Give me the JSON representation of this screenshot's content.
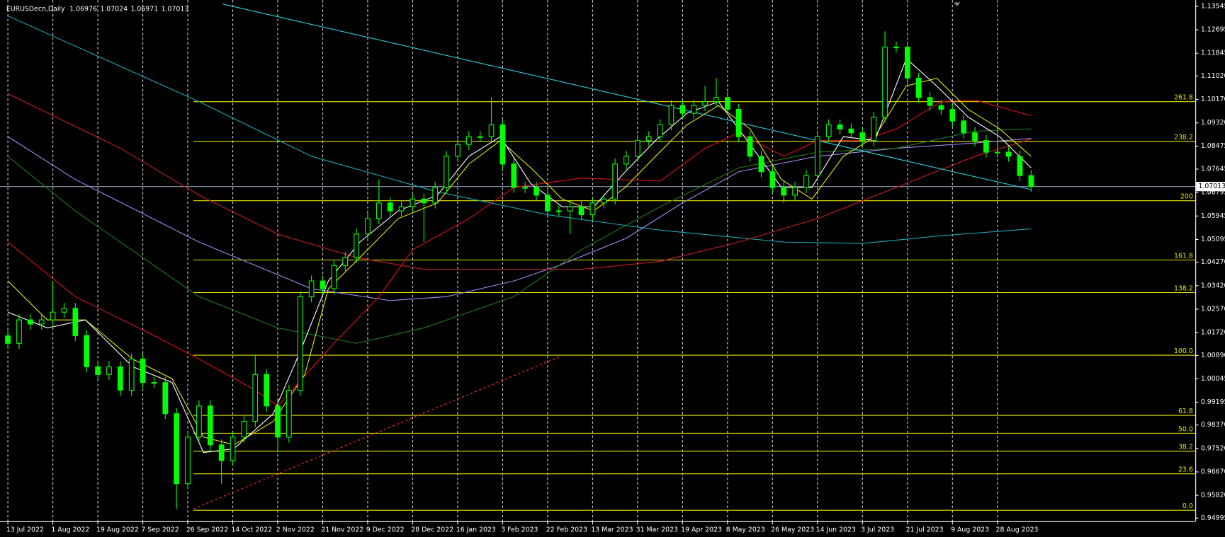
{
  "chart_data": {
    "type": "candlestick",
    "header": {
      "symbol": "EURUSDecn,Daily",
      "ohlc": [
        1.06976,
        1.07024,
        1.06971,
        1.07013
      ]
    },
    "bid": 1.07013,
    "bid_color": "#8a9bb0",
    "candle_color": "#00ff00",
    "grid": true,
    "xlim": [
      -0.7,
      105.6
    ],
    "ylim": [
      0.9488,
      1.1377
    ],
    "yticks": [
      1.13545,
      1.12695,
      1.11845,
      {
        "value": 1.1102,
        "label": "1.11020"
      },
      {
        "value": 1.1017,
        "label": "1.10170"
      },
      {
        "value": 1.0932,
        "label": "1.09320"
      },
      1.08475,
      1.07645,
      1.06795,
      1.05945,
      1.05095,
      {
        "value": 1.0427,
        "label": "1.04270"
      },
      {
        "value": 1.0342,
        "label": "1.03420"
      },
      {
        "value": 1.0257,
        "label": "1.02570"
      },
      {
        "value": 1.0172,
        "label": "1.01720"
      },
      {
        "value": 1.0089,
        "label": "1.00890"
      },
      1.00045,
      0.99195,
      {
        "value": 0.9837,
        "label": "0.98370"
      },
      {
        "value": 0.9752,
        "label": "0.97520"
      },
      {
        "value": 0.9667,
        "label": "0.96670"
      },
      {
        "value": 0.9582,
        "label": "0.95820"
      },
      0.94995
    ],
    "xticks": [
      {
        "value": 0,
        "label": "13 Jul 2022"
      },
      {
        "value": 4,
        "label": "1 Aug 2022"
      },
      {
        "value": 8,
        "label": "19 Aug 2022"
      },
      {
        "value": 12,
        "label": "7 Sep 2022"
      },
      {
        "value": 16,
        "label": "26 Sep 2022"
      },
      {
        "value": 20,
        "label": "14 Oct 2022"
      },
      {
        "value": 24,
        "label": "2 Nov 2022"
      },
      {
        "value": 28,
        "label": "21 Nov 2022"
      },
      {
        "value": 32,
        "label": "9 Dec 2022"
      },
      {
        "value": 36,
        "label": "28 Dec 2022"
      },
      {
        "value": 40,
        "label": "16 Jan 2023"
      },
      {
        "value": 44,
        "label": "3 Feb 2023"
      },
      {
        "value": 48,
        "label": "22 Feb 2023"
      },
      {
        "value": 52,
        "label": "13 Mar 2023"
      },
      {
        "value": 56,
        "label": "31 Mar 2023"
      },
      {
        "value": 60,
        "label": "19 Apr 2023"
      },
      {
        "value": 64,
        "label": "8 May 2023"
      },
      {
        "value": 68,
        "label": "26 May 2023"
      },
      {
        "value": 72,
        "label": "14 Jun 2023"
      },
      {
        "value": 76,
        "label": "3 Jul 2023"
      },
      {
        "value": 80,
        "label": "21 Jul 2023"
      },
      {
        "value": 84,
        "label": "9 Aug 2023"
      },
      {
        "value": 88,
        "label": "28 Aug 2023"
      }
    ],
    "open": [
      1.016,
      1.0133,
      1.0218,
      1.0203,
      1.0218,
      1.0246,
      1.026,
      1.0161,
      1.0048,
      1.002,
      1.0048,
      0.9963,
      1.0076,
      0.9991,
      0.9991,
      0.9878,
      0.9624,
      0.9793,
      0.9906,
      0.9765,
      0.9708,
      0.9793,
      0.985,
      1.002,
      0.9906,
      0.9793,
      0.9963,
      1.0302,
      1.0359,
      1.0331,
      1.0415,
      1.0444,
      1.0529,
      1.0585,
      1.0642,
      1.0613,
      1.0628,
      1.0656,
      1.0642,
      1.0698,
      1.0811,
      1.0854,
      1.0882,
      1.0882,
      1.0925,
      1.0783,
      1.0698,
      1.0698,
      1.067,
      1.0613,
      1.0613,
      1.0628,
      1.0599,
      1.0642,
      1.0656,
      1.0783,
      1.0811,
      1.0868,
      1.0882,
      1.0925,
      1.0995,
      1.0967,
      1.0995,
      1.1009,
      1.1024,
      1.0981,
      1.0882,
      1.0811,
      1.0755,
      1.0698,
      1.067,
      1.0698,
      1.0741,
      1.0882,
      1.0925,
      1.091,
      1.0896,
      1.0868,
      1.0953,
      1.1207,
      1.1207,
      1.1094,
      1.1024,
      1.0995,
      1.0981,
      1.0939,
      1.0896,
      1.0868,
      1.0826,
      1.0826,
      1.0811,
      1.0741
    ],
    "high": [
      1.018,
      1.0238,
      1.0238,
      1.0238,
      1.0359,
      1.028,
      1.028,
      1.0181,
      1.0068,
      1.0068,
      1.0068,
      1.0096,
      1.0096,
      1.0011,
      1.0011,
      0.9898,
      0.9813,
      0.9926,
      0.9926,
      0.9785,
      0.9813,
      0.987,
      1.009,
      1.004,
      0.9926,
      0.9983,
      1.0322,
      1.0379,
      1.0379,
      1.0435,
      1.0464,
      1.0549,
      1.0605,
      1.0727,
      1.0662,
      1.0648,
      1.0676,
      1.0676,
      1.0718,
      1.0831,
      1.0874,
      1.0902,
      1.0902,
      1.1024,
      1.0945,
      1.0803,
      1.0718,
      1.0718,
      1.069,
      1.0633,
      1.0648,
      1.0648,
      1.0662,
      1.0676,
      1.0803,
      1.0831,
      1.0888,
      1.0902,
      1.0945,
      1.1015,
      1.1015,
      1.1015,
      1.1066,
      1.1094,
      1.1044,
      1.1001,
      1.0902,
      1.0831,
      1.0775,
      1.0718,
      1.0718,
      1.0761,
      1.0902,
      1.0945,
      1.0945,
      1.093,
      1.0916,
      1.0973,
      1.1264,
      1.1227,
      1.1227,
      1.1114,
      1.1044,
      1.1015,
      1.1001,
      1.0959,
      1.0916,
      1.0888,
      1.0925,
      1.0846,
      1.0831,
      1.0761
    ],
    "low": [
      1.0113,
      1.0113,
      1.0183,
      1.0183,
      1.0198,
      1.0226,
      1.0141,
      1.0028,
      1.0,
      1.0,
      0.9943,
      0.9943,
      0.9971,
      0.9971,
      0.9858,
      0.9533,
      0.9604,
      0.9773,
      0.9745,
      0.9624,
      0.9688,
      0.9773,
      0.983,
      0.9886,
      0.9737,
      0.9773,
      0.9943,
      1.0282,
      1.0311,
      1.0311,
      1.0395,
      1.0424,
      1.0509,
      1.0565,
      1.0593,
      1.0593,
      1.0608,
      1.05,
      1.0622,
      1.0678,
      1.0791,
      1.0834,
      1.0862,
      1.0862,
      1.0763,
      1.0678,
      1.0678,
      1.065,
      1.0593,
      1.0593,
      1.0529,
      1.0579,
      1.0579,
      1.0622,
      1.0636,
      1.0763,
      1.0791,
      1.0848,
      1.0862,
      1.0905,
      1.0947,
      1.0947,
      1.0975,
      1.0989,
      1.0961,
      1.0862,
      1.0791,
      1.0735,
      1.0678,
      1.0642,
      1.065,
      1.0678,
      1.0721,
      1.0862,
      1.089,
      1.0876,
      1.0848,
      1.0848,
      1.0933,
      1.1187,
      1.1074,
      1.1004,
      1.0975,
      1.0961,
      1.0919,
      1.0876,
      1.0848,
      1.0806,
      1.0806,
      1.0791,
      1.0721,
      1.0681
    ],
    "close": [
      1.0133,
      1.0218,
      1.0203,
      1.0218,
      1.0246,
      1.026,
      1.0161,
      1.0048,
      1.002,
      1.0048,
      0.9963,
      1.0076,
      0.9991,
      0.9991,
      0.9878,
      0.9624,
      0.9793,
      0.9906,
      0.9765,
      0.9708,
      0.9793,
      0.985,
      1.002,
      0.9906,
      0.9793,
      0.9963,
      1.0302,
      1.0359,
      1.0331,
      1.0415,
      1.0444,
      1.0529,
      1.0585,
      1.0642,
      1.0613,
      1.0628,
      1.0656,
      1.0642,
      1.0698,
      1.0811,
      1.0854,
      1.0882,
      1.0882,
      1.0925,
      1.0783,
      1.0698,
      1.0698,
      1.067,
      1.0613,
      1.0613,
      1.0628,
      1.0599,
      1.0642,
      1.0656,
      1.0783,
      1.0811,
      1.0868,
      1.0882,
      1.0925,
      1.0995,
      1.0967,
      1.0995,
      1.1009,
      1.1024,
      1.0981,
      1.0882,
      1.0811,
      1.0755,
      1.0698,
      1.067,
      1.0698,
      1.0741,
      1.0882,
      1.0925,
      1.091,
      1.0896,
      1.0868,
      1.0953,
      1.1207,
      1.1207,
      1.1094,
      1.1024,
      1.0995,
      1.0981,
      1.0939,
      1.0896,
      1.0868,
      1.0826,
      1.0826,
      1.0811,
      1.0741,
      1.0701
    ],
    "series": [
      {
        "color": "#1aa8b8",
        "x": [
          0,
          17,
          27,
          38,
          48,
          58,
          69,
          76,
          83,
          91
        ],
        "values": [
          1.132,
          1.1009,
          1.0811,
          1.0684,
          1.0599,
          1.0543,
          1.05,
          1.0495,
          1.0523,
          1.0548
        ]
      },
      {
        "color": "#9d8cf0",
        "x": [
          0,
          6,
          17,
          27,
          34,
          39,
          45,
          49,
          55,
          60,
          65,
          72,
          79,
          86,
          91
        ],
        "values": [
          1.0882,
          1.0727,
          1.05,
          1.0331,
          1.0288,
          1.0302,
          1.0359,
          1.0415,
          1.0514,
          1.0642,
          1.0755,
          1.0811,
          1.084,
          1.0859,
          1.0876
        ]
      },
      {
        "color": "#1f7a1f",
        "x": [
          0,
          6,
          17,
          24,
          31,
          37,
          45,
          51,
          58,
          65,
          72,
          79,
          86,
          91
        ],
        "values": [
          1.0811,
          1.0613,
          1.0302,
          1.0189,
          1.0133,
          1.0189,
          1.0302,
          1.0472,
          1.0628,
          1.0769,
          1.0826,
          1.084,
          1.0902,
          1.091
        ]
      },
      {
        "color": "#c81e1e",
        "x": [
          0,
          10,
          17,
          24,
          31,
          37,
          45,
          51,
          58,
          65,
          72,
          79,
          86,
          91
        ],
        "values": [
          1.1038,
          1.084,
          1.067,
          1.0529,
          1.0444,
          1.0401,
          1.0401,
          1.0401,
          1.043,
          1.05,
          1.0585,
          1.0698,
          1.0811,
          1.0874
        ]
      },
      {
        "color": "#e01010",
        "x": [
          0,
          6,
          13,
          17,
          22,
          24,
          29,
          33,
          36,
          41,
          45,
          51,
          58,
          62,
          65,
          69,
          72,
          76,
          79,
          83,
          86,
          91
        ],
        "values": [
          1.05,
          1.0302,
          1.0161,
          1.0076,
          0.9963,
          0.9906,
          1.0133,
          1.0302,
          1.0472,
          1.0585,
          1.0698,
          1.0732,
          1.0721,
          1.084,
          1.0896,
          1.0811,
          1.0868,
          1.0868,
          1.091,
          1.1009,
          1.1015,
          1.0958
        ]
      },
      {
        "color": "#e8e800",
        "x": [
          0,
          3.5,
          6.9,
          11.1,
          14.6,
          17.4,
          20.1,
          23.6,
          26.4,
          28.5,
          31.3,
          34.7,
          38.2,
          41,
          43.8,
          46.5,
          49.3,
          52.1,
          54.9,
          57.6,
          60.4,
          63.2,
          66,
          68.8,
          71.5,
          74.3,
          77.1,
          79.9,
          82.6,
          85.4,
          88.2,
          91
        ],
        "values": [
          1.0359,
          1.0218,
          1.0218,
          1.0076,
          1.0005,
          0.9793,
          0.9765,
          0.985,
          1.002,
          1.0331,
          1.0444,
          1.0585,
          1.0642,
          1.0783,
          1.0868,
          1.0769,
          1.0656,
          1.0613,
          1.0698,
          1.0811,
          1.0925,
          1.0995,
          1.091,
          1.0727,
          1.0656,
          1.0811,
          1.0882,
          1.1066,
          1.1094,
          1.0981,
          1.091,
          1.0811
        ]
      },
      {
        "color": "#ffffff",
        "x": [
          0,
          3.5,
          6.9,
          11.1,
          14.6,
          17.4,
          20.1,
          23.6,
          26,
          28.5,
          31.3,
          34.7,
          38.2,
          41,
          43.8,
          46.5,
          49.3,
          52.1,
          54.9,
          57.6,
          60.4,
          63.2,
          66,
          68.8,
          71.5,
          74.3,
          77.1,
          79.9,
          82.6,
          85.4,
          88.2,
          91
        ],
        "values": [
          1.0246,
          1.0189,
          1.0218,
          1.0048,
          0.9991,
          0.9737,
          0.9751,
          0.9878,
          1.0104,
          1.0359,
          1.05,
          1.0613,
          1.067,
          1.0811,
          1.0882,
          1.0712,
          1.0628,
          1.0628,
          1.0755,
          1.0868,
          1.0967,
          1.1009,
          1.0854,
          1.0698,
          1.0698,
          1.0882,
          1.0868,
          1.1165,
          1.1066,
          1.0953,
          1.0882,
          1.0769
        ]
      },
      {
        "color": "#2ad0e0",
        "x": [
          19.1,
          91
        ],
        "values": [
          1.1363,
          1.069
        ]
      },
      {
        "color": "#ff3030",
        "dashed": true,
        "x": [
          16.5,
          49.2
        ],
        "values": [
          0.9533,
          1.0087
        ]
      }
    ],
    "fib_color": "#e6e600",
    "fib_start": 16.5,
    "fib_levels": [
      {
        "label": "261.8",
        "value": 1.1009
      },
      {
        "label": "238.2",
        "value": 1.0865
      },
      {
        "label": "200",
        "value": 1.065
      },
      {
        "label": "161.8",
        "value": 1.0435
      },
      {
        "label": "138.2",
        "value": 1.0317
      },
      {
        "label": "100.0",
        "value": 1.009
      },
      {
        "label": "61.8",
        "value": 0.9872
      },
      {
        "label": "50.0",
        "value": 0.9807
      },
      {
        "label": "38.2",
        "value": 0.9742
      },
      {
        "label": "23.6",
        "value": 0.966
      },
      {
        "label": "0.0",
        "value": 0.9528
      }
    ]
  }
}
